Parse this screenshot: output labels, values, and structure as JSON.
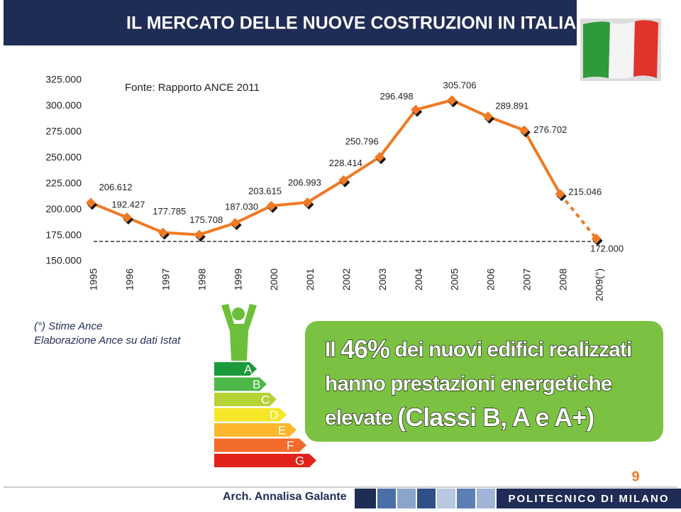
{
  "header": {
    "title": "IL MERCATO DELLE NUOVE COSTRUZIONI IN ITALIA"
  },
  "chart_data": {
    "type": "line",
    "subtitle": "Fonte: Rapporto ANCE 2011",
    "categories": [
      "1995",
      "1996",
      "1997",
      "1998",
      "1999",
      "2000",
      "2001",
      "2002",
      "2003",
      "2004",
      "2005",
      "2006",
      "2007",
      "2008",
      "2009(°)"
    ],
    "values": [
      206612,
      192427,
      177785,
      175708,
      187030,
      203615,
      206993,
      228414,
      250796,
      296498,
      305706,
      289891,
      276702,
      215046,
      172000
    ],
    "value_labels": [
      "206.612",
      "192.427",
      "177.785",
      "175.708",
      "187.030",
      "203.615",
      "206.993",
      "228.414",
      "250.796",
      "296.498",
      "305.706",
      "289.891",
      "276.702",
      "215.046",
      "172.000"
    ],
    "color": "#f07a23",
    "ylim": [
      150000,
      325000
    ],
    "yticks": [
      {
        "value": 150000,
        "label": "150.000"
      },
      {
        "value": 175000,
        "label": "175.000"
      },
      {
        "value": 200000,
        "label": "200.000"
      },
      {
        "value": 225000,
        "label": "225.000"
      },
      {
        "value": 250000,
        "label": "250.000"
      },
      {
        "value": 275000,
        "label": "275.000"
      },
      {
        "value": 300000,
        "label": "300.000"
      },
      {
        "value": 325000,
        "label": "325.000"
      }
    ],
    "notes": [
      "(°) Stime Ance",
      "Elaborazione Ance su dati Istat"
    ]
  },
  "energy_classes": [
    "A",
    "B",
    "C",
    "D",
    "E",
    "F",
    "G"
  ],
  "callout": {
    "lines": [
      [
        "Il ",
        "46%",
        " dei nuovi edifici realizzati"
      ],
      [
        "hanno  prestazioni energetiche"
      ],
      [
        "elevate ",
        "(Classi B, A e A+)"
      ]
    ]
  },
  "footer": {
    "page": "9",
    "author": "Arch. Annalisa Galante",
    "institution": "POLITECNICO DI MILANO"
  }
}
